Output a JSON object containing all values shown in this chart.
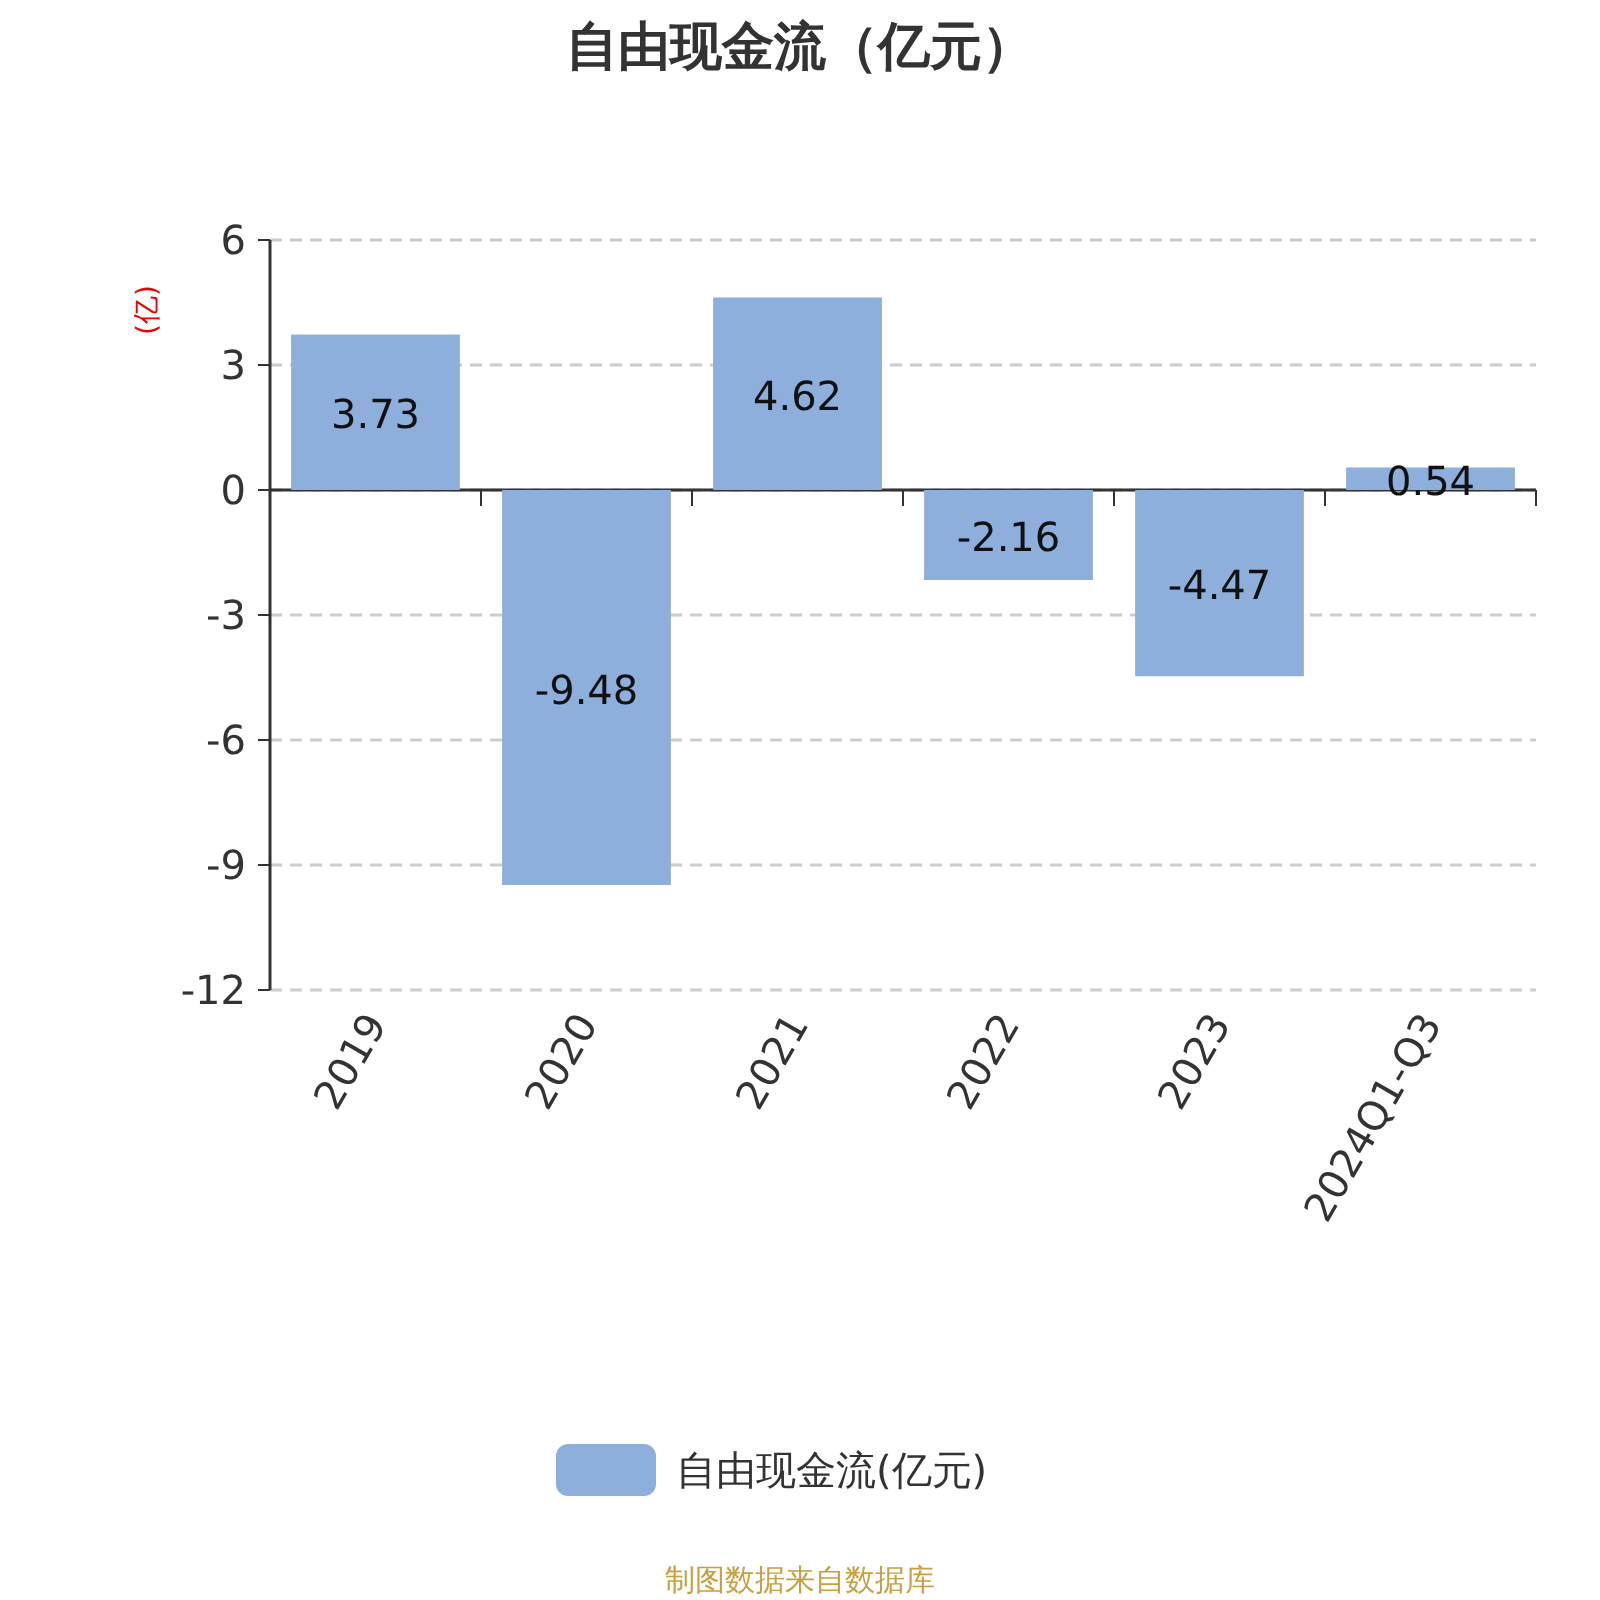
{
  "chart_data": {
    "type": "bar",
    "title": "自由现金流（亿元）",
    "ylabel": "(亿)",
    "categories": [
      "2019",
      "2020",
      "2021",
      "2022",
      "2023",
      "2024Q1-Q3"
    ],
    "series": [
      {
        "name": "自由现金流(亿元)",
        "color": "#8eaedb",
        "values": [
          3.73,
          -9.48,
          4.62,
          -2.16,
          -4.47,
          0.54
        ]
      }
    ],
    "ylim": [
      -12,
      6
    ],
    "yticks": [
      -12,
      -9,
      -6,
      -3,
      0,
      3,
      6
    ],
    "grid": "y",
    "legend": "bottom",
    "data_labels": true,
    "annotations": [
      "制图数据来自数据库"
    ]
  }
}
